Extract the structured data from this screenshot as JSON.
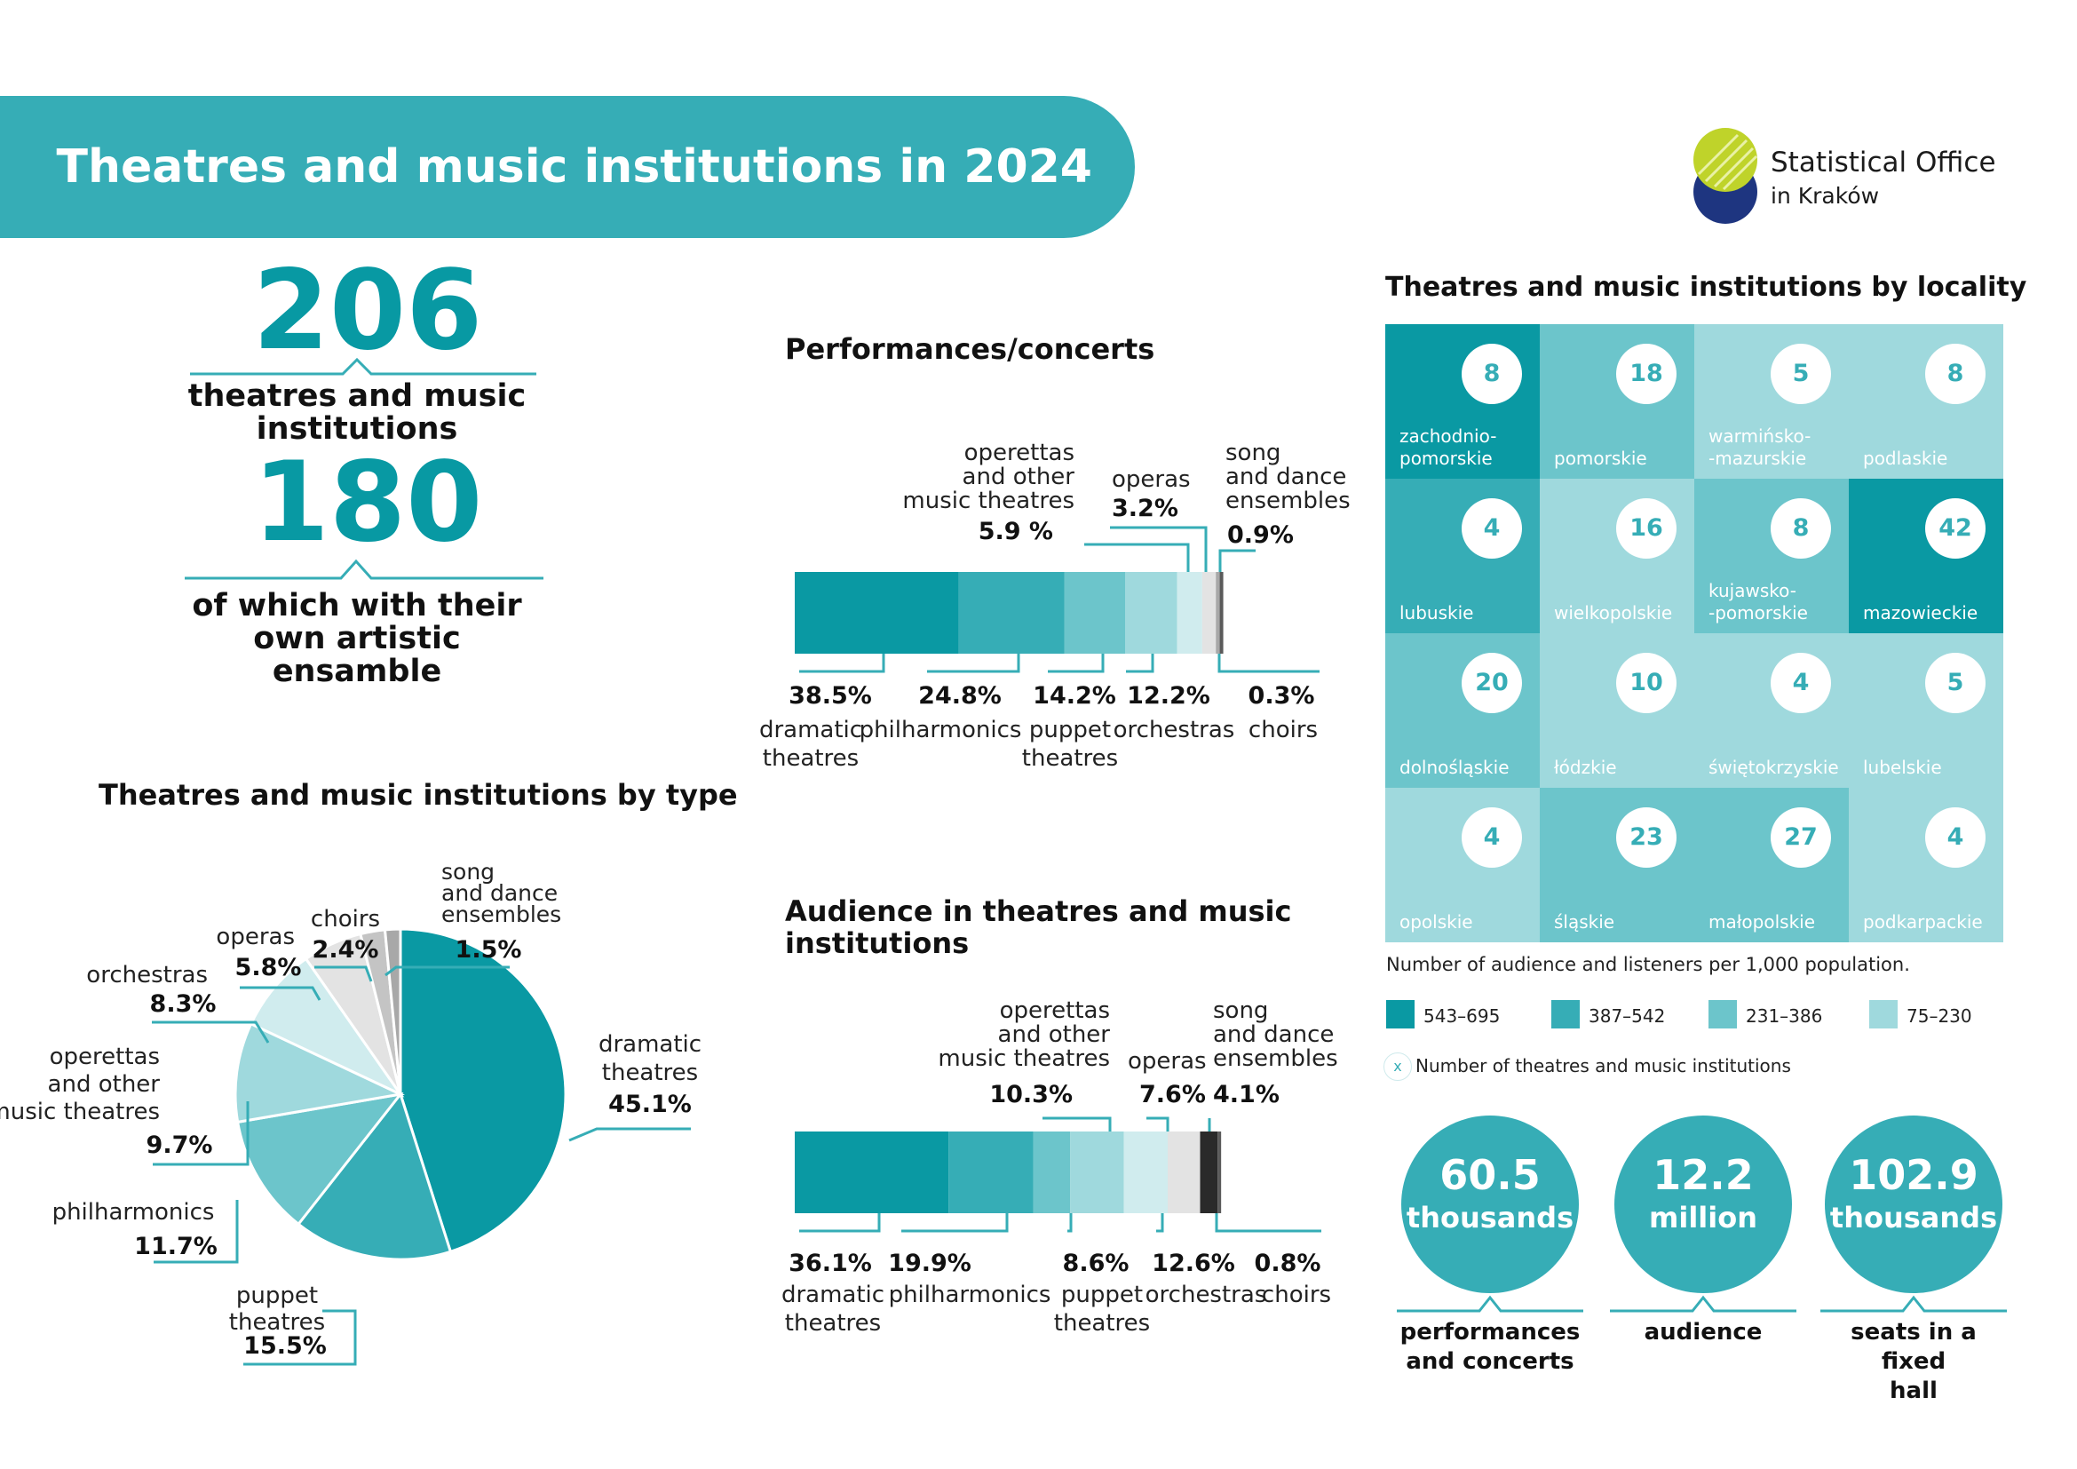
{
  "title": "Theatres and music institutions in 2024",
  "logo": {
    "line1": "Statistical Office",
    "line2": "in Kraków"
  },
  "headline": {
    "total_value": "206",
    "total_label_line1": "theatres and music",
    "total_label_line2": "institutions",
    "ensemble_value": "180",
    "ensemble_label_line1": "of which with their",
    "ensemble_label_line2": "own artistic ensamble"
  },
  "sections": {
    "performances": "Performances/concerts",
    "audience_line1": "Audience in theatres and music",
    "audience_line2": "institutions",
    "by_type": "Theatres and music institutions by type",
    "by_locality": "Theatres and music institutions  by locality"
  },
  "colors": {
    "brand": "#36adb6",
    "dramatic": "#0a99a3",
    "philharmonics": "#36adb6",
    "puppet": "#6cc5cb",
    "orchestras": "#9fd9dd",
    "operettas": "#d0ecee",
    "operas": "#e3e3e3",
    "choirs": "#c4c4c4",
    "song_dance": "#a8a8a8",
    "choirs_bar": "#5a5a5a",
    "song_dance_bar": "#2a2a2a"
  },
  "chart_data": [
    {
      "type": "pie",
      "title": "Theatres and music institutions by type",
      "categories": [
        "dramatic theatres",
        "puppet theatres",
        "philharmonics",
        "operettas and other music theatres",
        "orchestras",
        "operas",
        "choirs",
        "song and dance ensembles"
      ],
      "values": [
        45.1,
        15.5,
        11.7,
        9.7,
        8.3,
        5.8,
        2.4,
        1.5
      ],
      "labels": [
        {
          "lines": [
            "dramatic",
            "theatres"
          ],
          "pct": "45.1%"
        },
        {
          "lines": [
            "puppet",
            "theatres"
          ],
          "pct": "15.5%"
        },
        {
          "lines": [
            "philharmonics"
          ],
          "pct": "11.7%"
        },
        {
          "lines": [
            "operettas",
            "and other",
            "music theatres"
          ],
          "pct": "9.7%"
        },
        {
          "lines": [
            "orchestras"
          ],
          "pct": "8.3%"
        },
        {
          "lines": [
            "operas"
          ],
          "pct": "5.8%"
        },
        {
          "lines": [
            "choirs"
          ],
          "pct": "2.4%"
        },
        {
          "lines": [
            "song",
            "and dance",
            "ensembles"
          ],
          "pct": "1.5%"
        }
      ]
    },
    {
      "type": "bar",
      "title": "Performances/concerts",
      "stacked": true,
      "categories": [
        "dramatic theatres",
        "philharmonics",
        "puppet theatres",
        "orchestras",
        "operettas and other music theatres",
        "operas",
        "song and dance ensembles",
        "choirs"
      ],
      "values": [
        38.5,
        24.8,
        14.2,
        12.2,
        5.9,
        3.2,
        0.9,
        0.3
      ],
      "bottom_labels": [
        {
          "pct": "38.5%",
          "lines": [
            "dramatic",
            "theatres"
          ]
        },
        {
          "pct": "24.8%",
          "lines": [
            "philharmonics"
          ]
        },
        {
          "pct": "14.2%",
          "lines": [
            "puppet",
            "theatres"
          ]
        },
        {
          "pct": "12.2%",
          "lines": [
            "orchestras"
          ]
        },
        {
          "pct": "0.3%",
          "lines": [
            "choirs"
          ]
        }
      ],
      "top_labels": [
        {
          "lines": [
            "operettas",
            "and other",
            "music theatres"
          ],
          "pct": "5.9 %"
        },
        {
          "lines": [
            "operas"
          ],
          "pct": "3.2%"
        },
        {
          "lines": [
            "song",
            "and dance",
            "ensembles"
          ],
          "pct": "0.9%"
        }
      ]
    },
    {
      "type": "bar",
      "title": "Audience in theatres and music institutions",
      "stacked": true,
      "categories": [
        "dramatic theatres",
        "philharmonics",
        "puppet theatres",
        "orchestras",
        "operettas and other music theatres",
        "operas",
        "song and dance ensembles",
        "choirs"
      ],
      "values": [
        36.1,
        19.9,
        8.6,
        12.6,
        10.3,
        7.6,
        4.1,
        0.8
      ],
      "bottom_labels": [
        {
          "pct": "36.1%",
          "lines": [
            "dramatic",
            "theatres"
          ]
        },
        {
          "pct": "19.9%",
          "lines": [
            "philharmonics"
          ]
        },
        {
          "pct": "8.6%",
          "lines": [
            "puppet",
            "theatres"
          ]
        },
        {
          "pct": "12.6%",
          "lines": [
            "orchestras"
          ]
        },
        {
          "pct": "0.8%",
          "lines": [
            "choirs"
          ]
        }
      ],
      "top_labels": [
        {
          "lines": [
            "operettas",
            "and other",
            "music theatres"
          ],
          "pct": "10.3%"
        },
        {
          "lines": [
            "operas"
          ],
          "pct": "7.6%"
        },
        {
          "lines": [
            "song",
            "and dance",
            "ensembles"
          ],
          "pct": "4.1%"
        }
      ]
    },
    {
      "type": "heatmap",
      "title": "Theatres and music institutions  by locality",
      "legend_title": "Number of audience and listeners per 1,000 population.",
      "legend": [
        {
          "range": "543–695",
          "color": "#0a99a3"
        },
        {
          "range": "387–542",
          "color": "#36adb6"
        },
        {
          "range": "231–386",
          "color": "#6cc5cb"
        },
        {
          "range": "75–230",
          "color": "#9fd9dd"
        }
      ],
      "legend_marker": "x",
      "legend_marker_text": "Number of theatres and music institutions",
      "cells": [
        {
          "lines": [
            "zachodnio-",
            "pomorskie"
          ],
          "value": 8,
          "band": 0
        },
        {
          "lines": [
            "pomorskie"
          ],
          "value": 18,
          "band": 2
        },
        {
          "lines": [
            "warmińsko-",
            "-mazurskie"
          ],
          "value": 5,
          "band": 3
        },
        {
          "lines": [
            "podlaskie"
          ],
          "value": 8,
          "band": 3
        },
        {
          "lines": [
            "lubuskie"
          ],
          "value": 4,
          "band": 1
        },
        {
          "lines": [
            "wielkopolskie"
          ],
          "value": 16,
          "band": 3
        },
        {
          "lines": [
            "kujawsko-",
            "-pomorskie"
          ],
          "value": 8,
          "band": 2
        },
        {
          "lines": [
            "mazowieckie"
          ],
          "value": 42,
          "band": 0
        },
        {
          "lines": [
            "dolnośląskie"
          ],
          "value": 20,
          "band": 2
        },
        {
          "lines": [
            "łódzkie"
          ],
          "value": 10,
          "band": 3
        },
        {
          "lines": [
            "świętokrzyskie"
          ],
          "value": 4,
          "band": 3
        },
        {
          "lines": [
            "lubelskie"
          ],
          "value": 5,
          "band": 3
        },
        {
          "lines": [
            "opolskie"
          ],
          "value": 4,
          "band": 3
        },
        {
          "lines": [
            "śląskie"
          ],
          "value": 23,
          "band": 2
        },
        {
          "lines": [
            "małopolskie"
          ],
          "value": 27,
          "band": 2
        },
        {
          "lines": [
            "podkarpackie"
          ],
          "value": 4,
          "band": 3
        }
      ]
    }
  ],
  "summary": [
    {
      "value": "60.5",
      "unit": "thousands",
      "label_line1": "performances",
      "label_line2": "and concerts"
    },
    {
      "value": "12.2",
      "unit": "million",
      "label_line1": "audience",
      "label_line2": ""
    },
    {
      "value": "102.9",
      "unit": "thousands",
      "label_line1": "seats in a fixed",
      "label_line2": "hall"
    }
  ]
}
